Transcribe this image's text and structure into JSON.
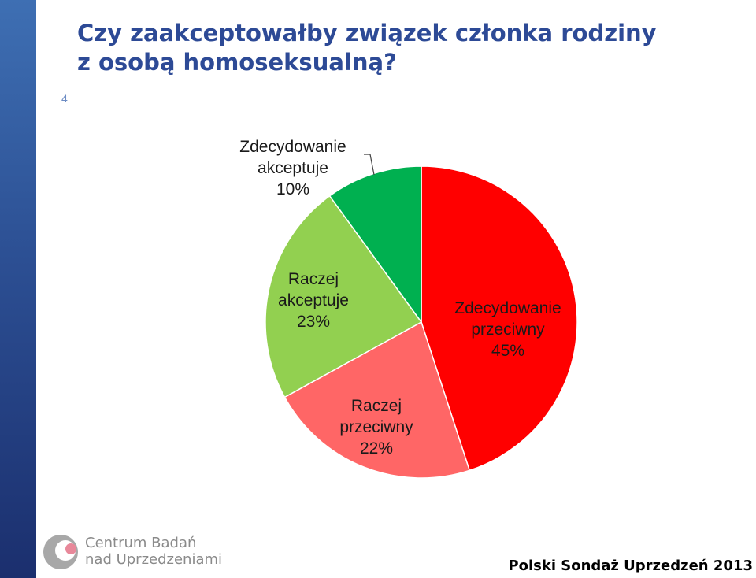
{
  "title_line1": "Czy zaakceptowałby związek członka rodziny",
  "title_line2": "z osobą homoseksualną?",
  "slide_number": "4",
  "logo": {
    "line1": "Centrum Badań",
    "line2": "nad Uprzedzeniami"
  },
  "footer": "Polski Sondaż Uprzedzeń 2013",
  "chart_data": {
    "type": "pie",
    "slices": [
      {
        "label_lines": [
          "Zdecydowanie",
          "przeciwny",
          "45%"
        ],
        "value": 45,
        "color": "#ff0000"
      },
      {
        "label_lines": [
          "Raczej",
          "przeciwny",
          "22%"
        ],
        "value": 22,
        "color": "#ff6666"
      },
      {
        "label_lines": [
          "Raczej",
          "akceptuje",
          "23%"
        ],
        "value": 23,
        "color": "#92d050"
      },
      {
        "label_lines": [
          "Zdecydowanie",
          "akceptuje",
          "10%"
        ],
        "value": 10,
        "color": "#00b050"
      }
    ]
  }
}
